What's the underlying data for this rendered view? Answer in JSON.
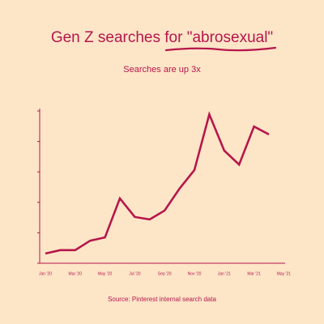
{
  "chart_data": {
    "type": "line",
    "title": "Gen Z searches for \"abrosexual\"",
    "subtitle": "Searches are up 3x",
    "source": "Source: Pinterest internal search data",
    "categories": [
      "Jan '20",
      null,
      "Mar '20",
      null,
      "May '20",
      null,
      "Jul '20",
      null,
      "Sep '20",
      null,
      "Nov '20",
      null,
      "Jan '21",
      null,
      "Mar '21",
      null,
      "May '21"
    ],
    "values": [
      0.32,
      0.43,
      0.43,
      0.74,
      0.85,
      2.13,
      1.52,
      1.44,
      1.73,
      2.45,
      3.06,
      4.89,
      3.7,
      3.24,
      4.49,
      4.23,
      null
    ],
    "color": "#b5174a",
    "ylim": [
      0,
      5
    ],
    "yticks": [
      0,
      1,
      2,
      3,
      4,
      5
    ],
    "grid": false
  }
}
